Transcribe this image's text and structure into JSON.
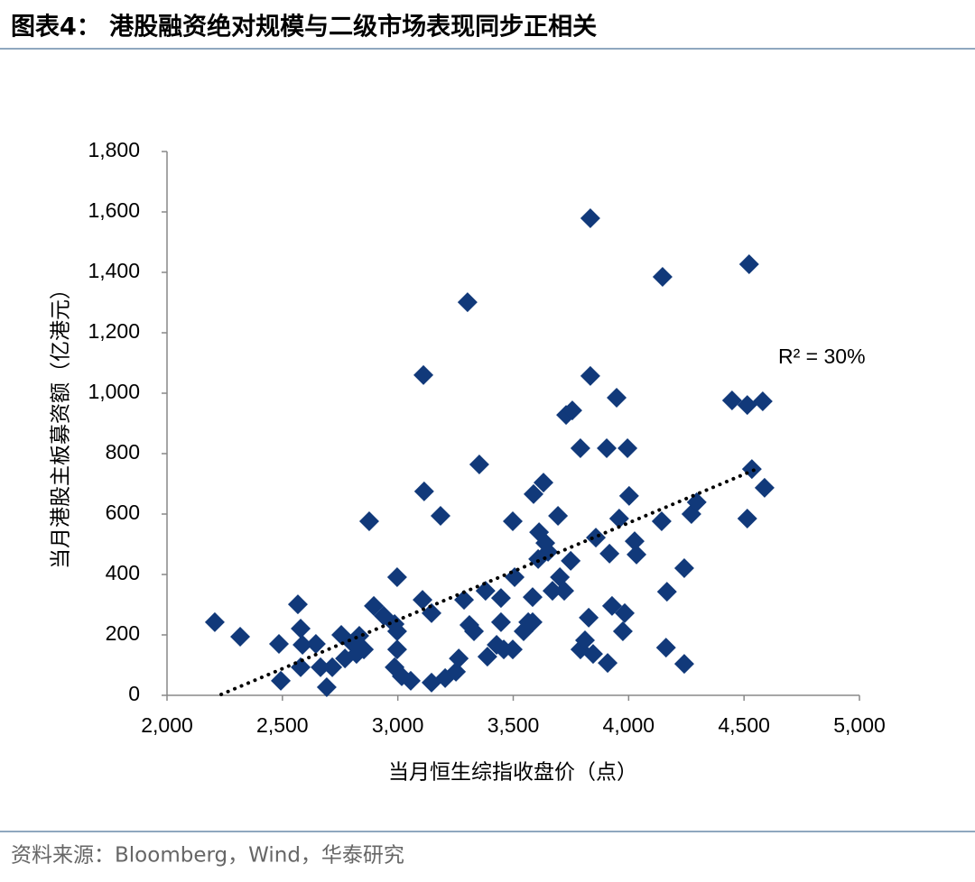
{
  "header": {
    "title": "图表4：  港股融资绝对规模与二级市场表现同步正相关"
  },
  "chart_data": {
    "type": "scatter",
    "x_label": "当月恒生综指收盘价（点）",
    "y_label": "当月港股主板募资额（亿港元）",
    "annotation": "R² = 30%",
    "color": "#11397a",
    "xlim": [
      2000,
      5000
    ],
    "xticks": [
      {
        "value": 2000,
        "label": "2,000"
      },
      {
        "value": 2500,
        "label": "2,500"
      },
      {
        "value": 3000,
        "label": "3,000"
      },
      {
        "value": 3500,
        "label": "3,500"
      },
      {
        "value": 4000,
        "label": "4,000"
      },
      {
        "value": 4500,
        "label": "4,500"
      },
      {
        "value": 5000,
        "label": "5,000"
      }
    ],
    "ylim": [
      0,
      1800
    ],
    "yticks": [
      0,
      200,
      400,
      600,
      800,
      {
        "value": 1000,
        "label": "1,000"
      },
      {
        "value": 1200,
        "label": "1,200"
      },
      {
        "value": 1400,
        "label": "1,400"
      },
      {
        "value": 1600,
        "label": "1,600"
      },
      {
        "value": 1800,
        "label": "1,800"
      }
    ],
    "x": [
      2207,
      2317,
      2485,
      2493,
      2567,
      2579,
      2587,
      2579,
      2645,
      2665,
      2692,
      2716,
      2755,
      2771,
      2802,
      2821,
      2833,
      2853,
      2876,
      2896,
      2939,
      2986,
      2997,
      2997,
      2997,
      2986,
      3017,
      3056,
      3107,
      3111,
      3114,
      3146,
      3146,
      3185,
      3205,
      3252,
      3264,
      3287,
      3302,
      3310,
      3330,
      3353,
      3380,
      3388,
      3428,
      3447,
      3447,
      3459,
      3498,
      3506,
      3498,
      3545,
      3565,
      3584,
      3584,
      3588,
      3612,
      3608,
      3631,
      3639,
      3651,
      3670,
      3694,
      3702,
      3721,
      3729,
      3749,
      3756,
      3791,
      3791,
      3811,
      3827,
      3834,
      3834,
      3846,
      3858,
      3905,
      3909,
      3917,
      3928,
      3948,
      3959,
      3975,
      3983,
      3995,
      4002,
      4026,
      4034,
      4143,
      4147,
      4162,
      4166,
      4241,
      4241,
      4272,
      4295,
      4448,
      4514,
      4514,
      4522,
      4534,
      4581,
      4589
    ],
    "values": [
      242,
      194,
      170,
      48,
      301,
      221,
      167,
      93,
      170,
      93,
      27,
      93,
      200,
      122,
      173,
      137,
      197,
      152,
      576,
      296,
      263,
      236,
      391,
      212,
      152,
      93,
      63,
      48,
      316,
      1060,
      675,
      272,
      42,
      594,
      57,
      78,
      122,
      316,
      1301,
      233,
      212,
      764,
      346,
      128,
      167,
      322,
      242,
      152,
      576,
      391,
      152,
      212,
      242,
      325,
      242,
      666,
      540,
      451,
      704,
      504,
      475,
      346,
      594,
      391,
      346,
      928,
      445,
      943,
      818,
      152,
      182,
      257,
      1579,
      1057,
      137,
      522,
      818,
      107,
      469,
      296,
      985,
      585,
      212,
      272,
      818,
      660,
      510,
      466,
      576,
      1385,
      158,
      343,
      104,
      421,
      600,
      639,
      976,
      961,
      585,
      1427,
      749,
      973,
      687
    ],
    "trendline": {
      "x": [
        2235,
        4554
      ],
      "y": [
        3,
        749
      ]
    }
  },
  "footer": {
    "source": "资料来源：Bloomberg，Wind，华泰研究"
  }
}
